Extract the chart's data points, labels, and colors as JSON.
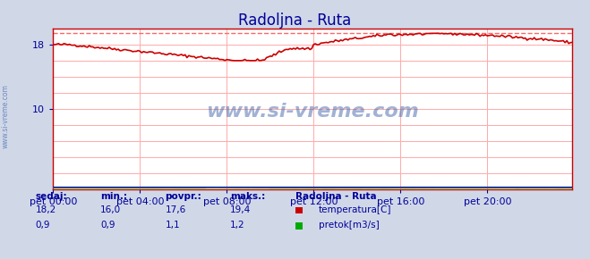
{
  "title": "Radoljna - Ruta",
  "title_color": "#000099",
  "bg_color": "#d0d8e8",
  "plot_bg_color": "#ffffff",
  "grid_color": "#ffaaaa",
  "x_labels": [
    "pet 00:00",
    "pet 04:00",
    "pet 08:00",
    "pet 12:00",
    "pet 16:00",
    "pet 20:00"
  ],
  "x_ticks": [
    0,
    48,
    96,
    144,
    192,
    240
  ],
  "y_min": 0,
  "y_max": 20,
  "y_ticks": [
    0,
    2,
    4,
    6,
    8,
    10,
    12,
    14,
    16,
    18,
    20
  ],
  "temp_color": "#cc0000",
  "flow_color": "#00aa00",
  "flow_color2": "#0000cc",
  "max_line_color": "#ff6666",
  "watermark_color": "#4466aa",
  "temp_min": 16.0,
  "temp_max": 19.4,
  "temp_avg": 17.6,
  "temp_curr": 18.2,
  "flow_min": 0.9,
  "flow_max": 1.2,
  "flow_avg": 1.1,
  "flow_curr": 0.9,
  "legend_title": "Radoljna - Ruta",
  "label_temp": "temperatura[C]",
  "label_flow": "pretok[m3/s]",
  "footer_color": "#000099",
  "total_points": 288
}
